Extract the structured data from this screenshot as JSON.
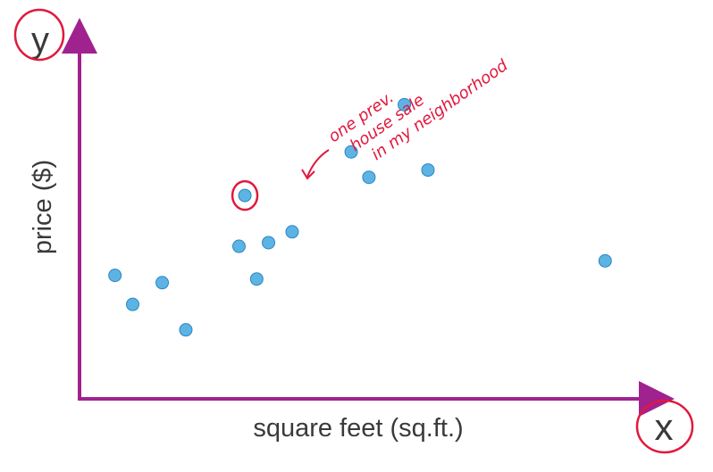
{
  "chart_data": {
    "type": "scatter",
    "xlabel": "square feet (sq.ft.)",
    "ylabel": "price ($)",
    "x_axis_symbol": "x",
    "y_axis_symbol": "y",
    "points": [
      {
        "x": 0.06,
        "y": 0.34
      },
      {
        "x": 0.09,
        "y": 0.26
      },
      {
        "x": 0.14,
        "y": 0.32
      },
      {
        "x": 0.18,
        "y": 0.19
      },
      {
        "x": 0.27,
        "y": 0.42
      },
      {
        "x": 0.28,
        "y": 0.56
      },
      {
        "x": 0.3,
        "y": 0.33
      },
      {
        "x": 0.32,
        "y": 0.43
      },
      {
        "x": 0.36,
        "y": 0.46
      },
      {
        "x": 0.46,
        "y": 0.68
      },
      {
        "x": 0.49,
        "y": 0.61
      },
      {
        "x": 0.55,
        "y": 0.81
      },
      {
        "x": 0.59,
        "y": 0.63
      },
      {
        "x": 0.89,
        "y": 0.38
      }
    ],
    "highlighted_index": 5,
    "annotation": [
      "one prev.",
      "house sale",
      "in my neighborhood"
    ],
    "xlim": [
      0,
      1
    ],
    "ylim": [
      0,
      1
    ],
    "grid": false,
    "colors": {
      "axis": "#a0228f",
      "point": "#5db4e4",
      "point_stroke": "#2c86c2",
      "annotation": "#e0193d"
    }
  }
}
